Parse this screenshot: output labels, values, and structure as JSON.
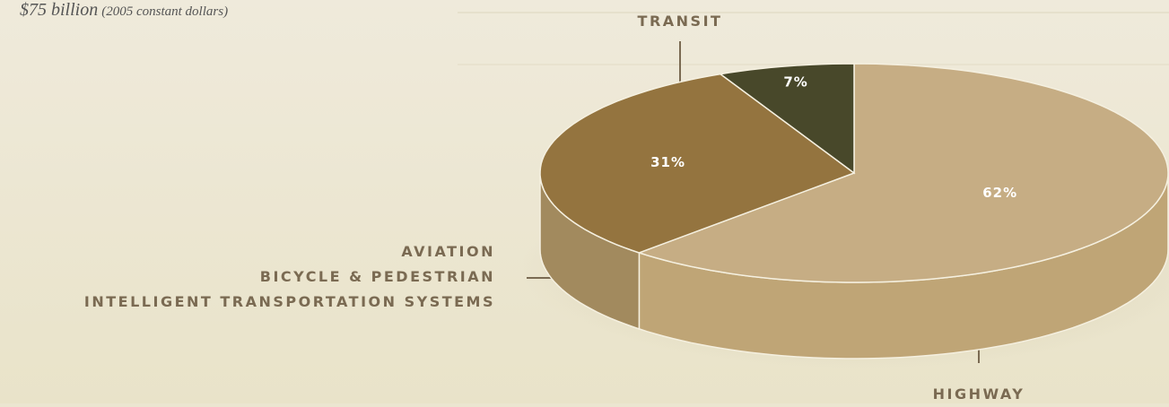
{
  "chart_data": {
    "type": "pie",
    "subtitle": "$75 billion",
    "subtitle_note": "(2005 constant dollars)",
    "categories": [
      "HIGHWAY",
      "TRANSIT",
      "AVIATION\nBICYCLE & PEDESTRIAN\nINTELLIGENT TRANSPORTATION SYSTEMS"
    ],
    "values": [
      62,
      31,
      7
    ],
    "value_labels": [
      "62%",
      "31%",
      "7%"
    ],
    "colors": [
      "#c6ad84",
      "#94743f",
      "#48482a"
    ],
    "side_colors": [
      "#bfa576",
      "#a28a5e",
      "#3e6a42"
    ]
  }
}
